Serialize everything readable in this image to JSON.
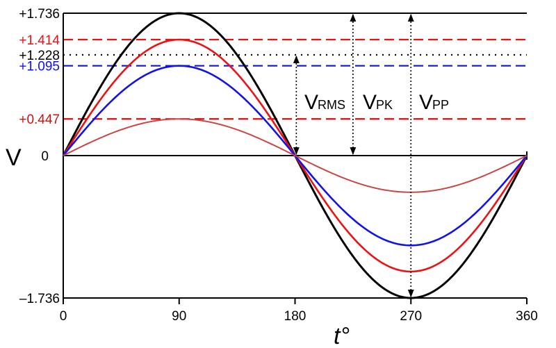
{
  "chart_data": {
    "type": "line",
    "title": "",
    "xlabel": "t°",
    "ylabel": "V",
    "xlim": [
      0,
      360
    ],
    "ylim": [
      -1.736,
      1.736
    ],
    "x_ticks": [
      0,
      90,
      180,
      270,
      360
    ],
    "x_tick_labels": [
      "0",
      "90",
      "180",
      "270",
      "360"
    ],
    "series": [
      {
        "name": "amplitude 1.736",
        "amplitude": 1.736,
        "color": "#000000"
      },
      {
        "name": "amplitude 1.414",
        "amplitude": 1.414,
        "color": "#ee1111"
      },
      {
        "name": "amplitude 1.095",
        "amplitude": 1.095,
        "color": "#1111ee"
      },
      {
        "name": "amplitude 0.447",
        "amplitude": 0.447,
        "color": "#cc4444"
      }
    ],
    "reference_lines": [
      {
        "value": 1.736,
        "label": "+1.736",
        "color": "#000000",
        "style": "solid"
      },
      {
        "value": 1.414,
        "label": "+1.414",
        "color": "#ee1111",
        "style": "dashed"
      },
      {
        "value": 1.228,
        "label": "+1.228",
        "color": "#000000",
        "style": "dotted"
      },
      {
        "value": 1.095,
        "label": "+1.095",
        "color": "#1111ee",
        "style": "dashed"
      },
      {
        "value": 0.447,
        "label": "+0.447",
        "color": "#cc1111",
        "style": "dashed"
      },
      {
        "value": 0,
        "label": "0",
        "color": "#000000",
        "style": "solid"
      },
      {
        "value": -1.736,
        "label": "-1.736",
        "color": "#000000",
        "style": "solid"
      }
    ],
    "annotations": [
      {
        "main": "V",
        "sub": "RMS",
        "x": 181,
        "from": 0,
        "to": 1.228
      },
      {
        "main": "V",
        "sub": "PK",
        "x": 225,
        "from": 0,
        "to": 1.736
      },
      {
        "main": "V",
        "sub": "PP",
        "x": 270,
        "from": -1.736,
        "to": 1.736
      }
    ]
  }
}
